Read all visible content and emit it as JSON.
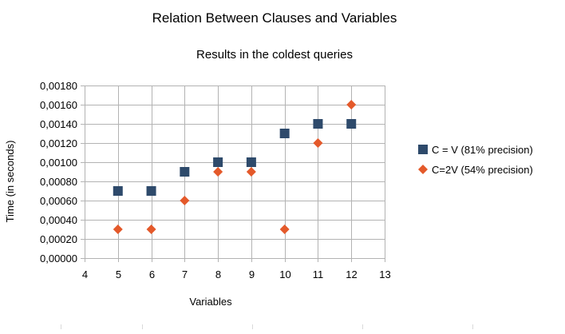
{
  "chart_data": {
    "type": "scatter",
    "title": "Relation Between Clauses and Variables",
    "subtitle": "Results in the coldest queries",
    "xlabel": "Variables",
    "ylabel": "Time (in seconds)",
    "xlim": [
      4,
      13
    ],
    "ylim": [
      0,
      0.0018
    ],
    "x_ticks": [
      4,
      5,
      6,
      7,
      8,
      9,
      10,
      11,
      12,
      13
    ],
    "x_tick_labels": [
      "4",
      "5",
      "6",
      "7",
      "8",
      "9",
      "10",
      "11",
      "12",
      "13"
    ],
    "y_ticks": [
      0,
      0.0002,
      0.0004,
      0.0006,
      0.0008,
      0.001,
      0.0012,
      0.0014,
      0.0016,
      0.0018
    ],
    "y_tick_labels": [
      "0,00000",
      "0,00020",
      "0,00040",
      "0,00060",
      "0,00080",
      "0,00100",
      "0,00120",
      "0,00140",
      "0,00160",
      "0,00180"
    ],
    "grid": true,
    "legend_position": "right",
    "series": [
      {
        "name": "C = V (81% precision)",
        "marker": "square",
        "color": "#2e4a6b",
        "points": [
          {
            "x": 5,
            "y": 0.0007
          },
          {
            "x": 6,
            "y": 0.0007
          },
          {
            "x": 7,
            "y": 0.0009
          },
          {
            "x": 8,
            "y": 0.001
          },
          {
            "x": 9,
            "y": 0.001
          },
          {
            "x": 10,
            "y": 0.0013
          },
          {
            "x": 11,
            "y": 0.0014
          },
          {
            "x": 12,
            "y": 0.0014
          }
        ]
      },
      {
        "name": "C=2V (54% precision)",
        "marker": "diamond",
        "color": "#e4592a",
        "points": [
          {
            "x": 5,
            "y": 0.0003
          },
          {
            "x": 6,
            "y": 0.0003
          },
          {
            "x": 7,
            "y": 0.0006
          },
          {
            "x": 8,
            "y": 0.0009
          },
          {
            "x": 9,
            "y": 0.0009
          },
          {
            "x": 10,
            "y": 0.0003
          },
          {
            "x": 11,
            "y": 0.0012
          },
          {
            "x": 12,
            "y": 0.0016
          }
        ]
      }
    ]
  }
}
